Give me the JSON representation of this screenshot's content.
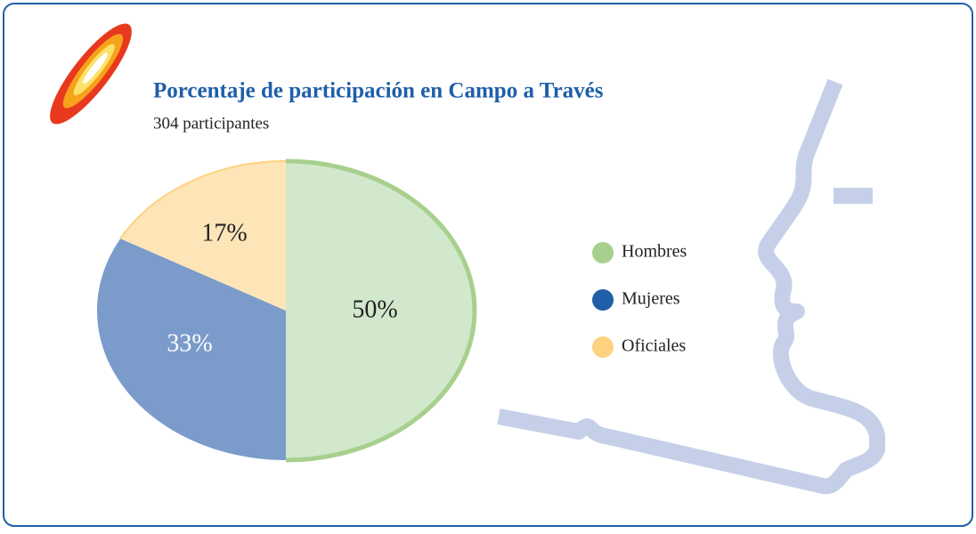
{
  "chart_data": {
    "type": "pie",
    "title": "Porcentaje de participación en Campo a Través",
    "subtitle": "304 participantes",
    "categories": [
      "Hombres",
      "Mujeres",
      "Oficiales"
    ],
    "values": [
      50,
      33,
      17
    ],
    "value_labels": [
      "50%",
      "33%",
      "17%"
    ],
    "colors": [
      "#a8d08d",
      "#1f5fa8",
      "#ffd27f"
    ],
    "slice_colors": [
      "#d1e8cc",
      "#7b9bcb",
      "#fde5b8"
    ],
    "legend": "right"
  }
}
